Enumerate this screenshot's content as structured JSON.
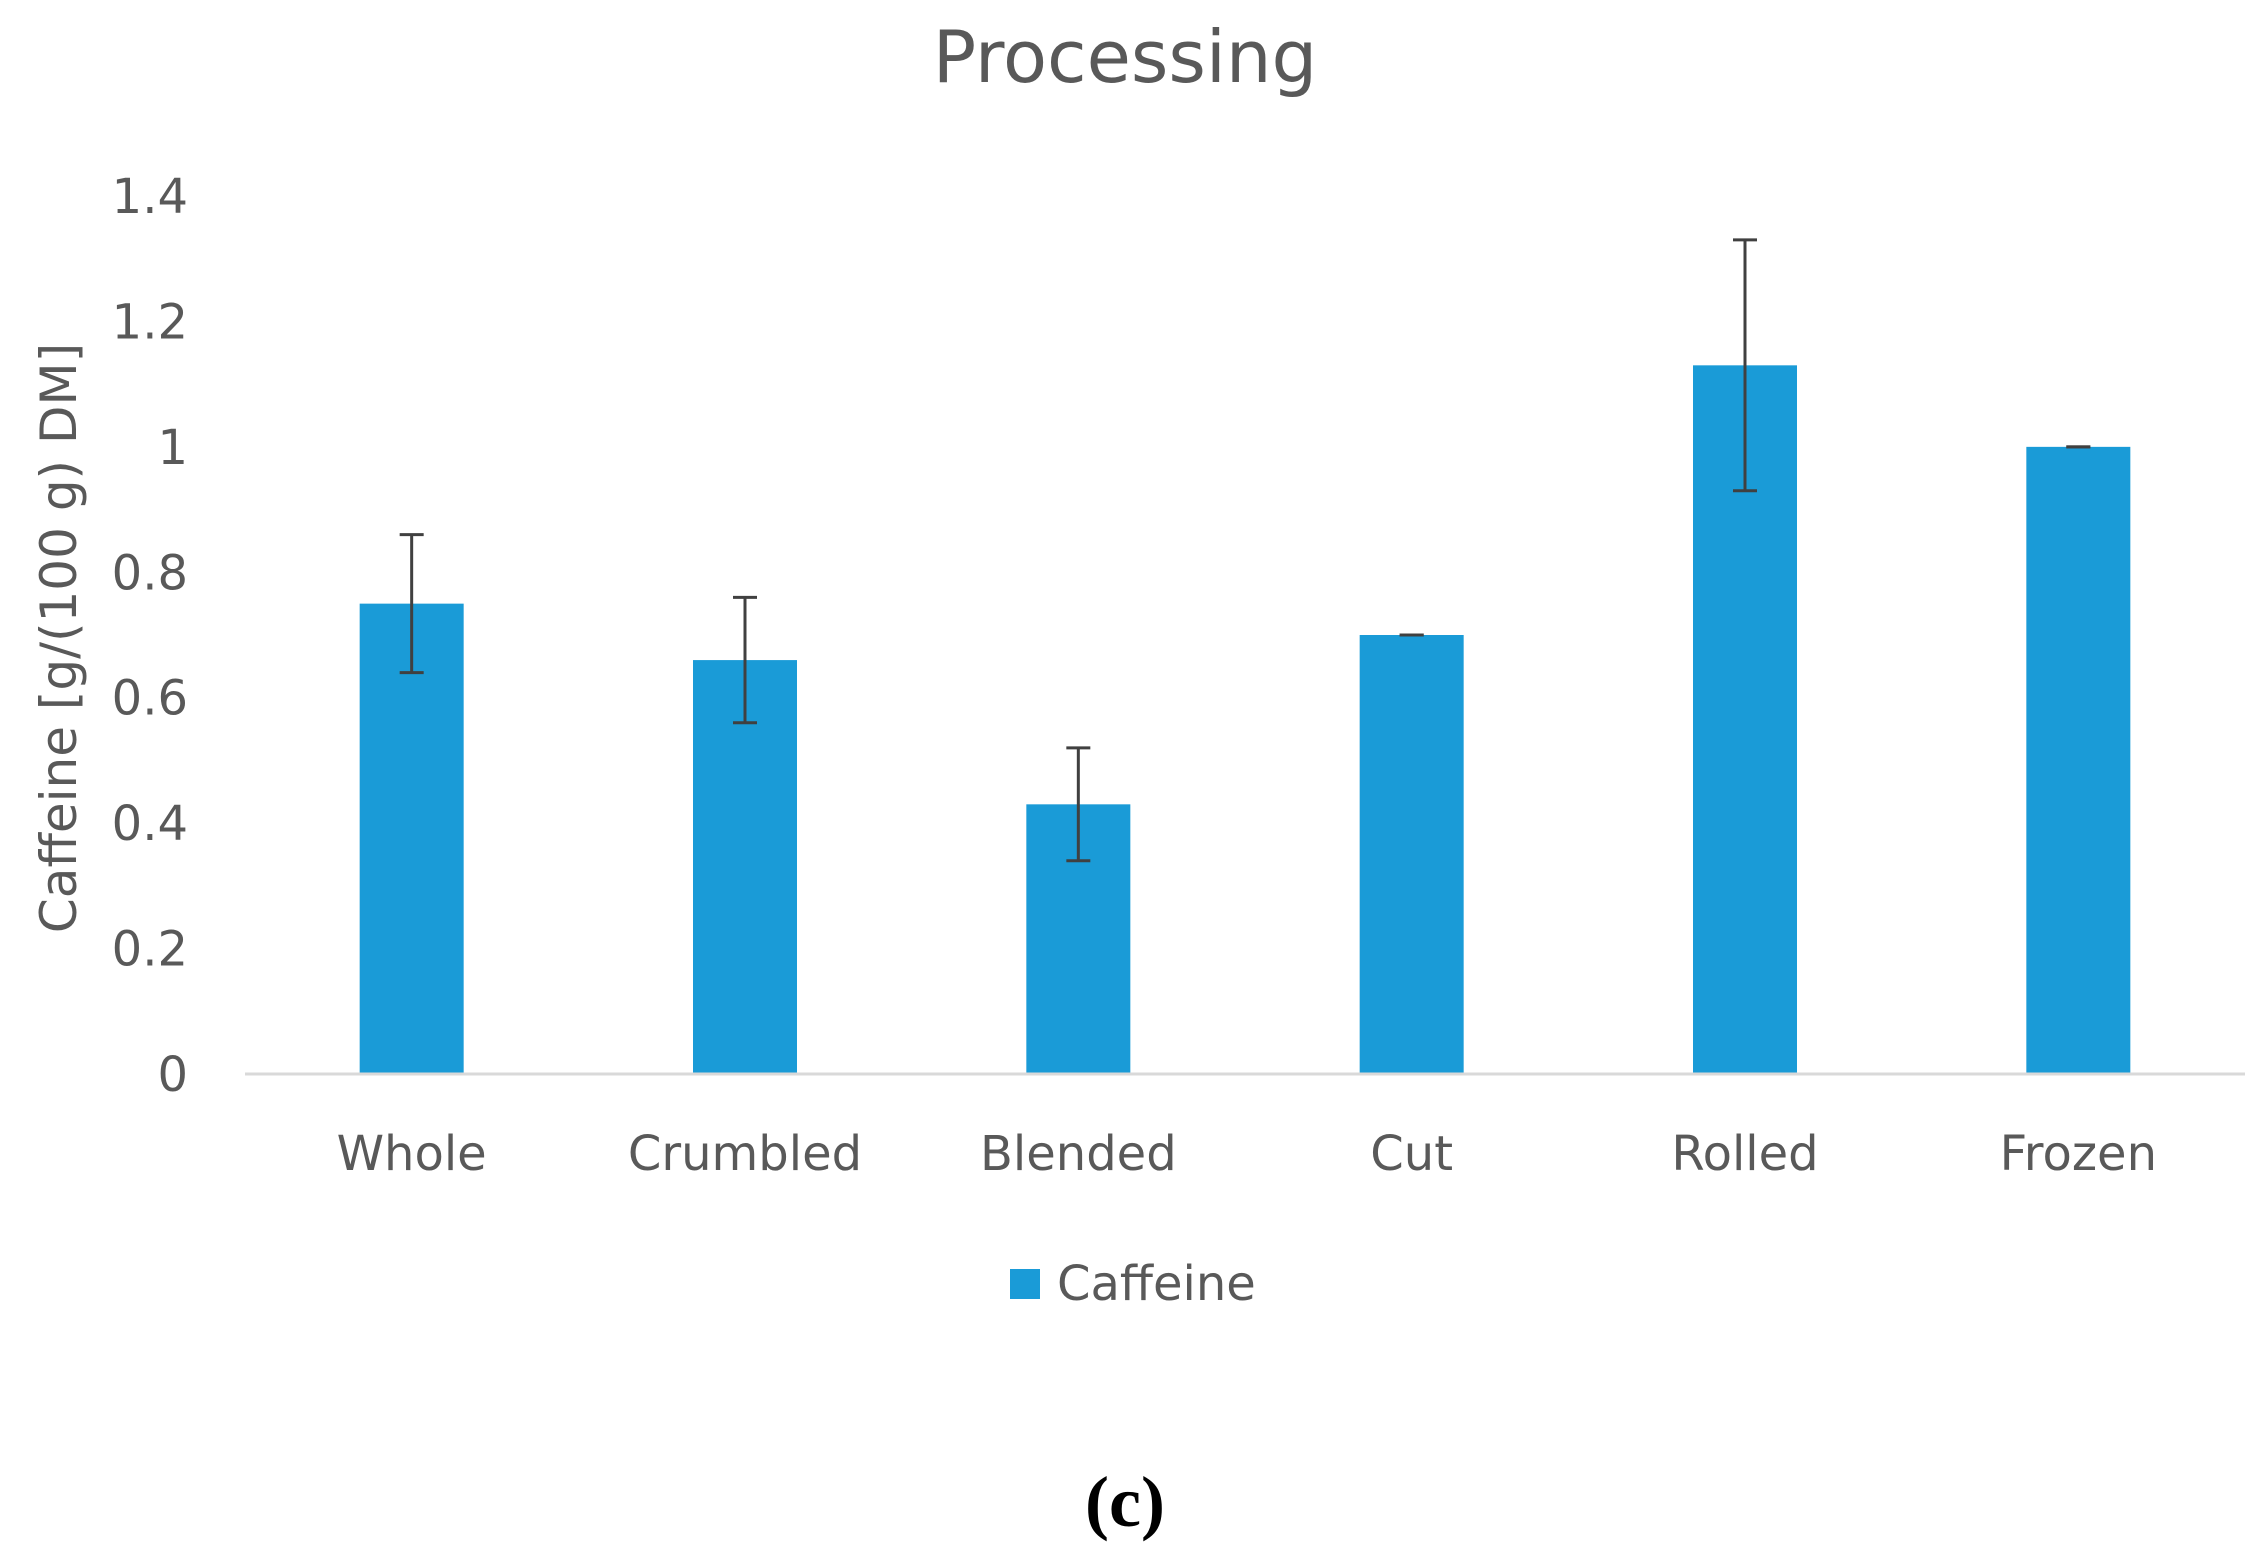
{
  "chart_data": {
    "type": "bar",
    "title": "Processing",
    "xlabel": "",
    "ylabel": "Caffeine [g/(100 g) DM]",
    "categories": [
      "Whole",
      "Crumbled",
      "Blended",
      "Cut",
      "Rolled",
      "Frozen"
    ],
    "series": [
      {
        "name": "Caffeine",
        "values": [
          0.75,
          0.66,
          0.43,
          0.7,
          1.13,
          1.0
        ],
        "error": [
          0.11,
          0.1,
          0.09,
          0.0,
          0.2,
          0.0
        ],
        "color": "#1A9BD7"
      }
    ],
    "ylim": [
      0,
      1.4
    ],
    "yticks": [
      0,
      0.2,
      0.4,
      0.6,
      0.8,
      1,
      1.2,
      1.4
    ],
    "ytick_labels": [
      "0",
      "0.2",
      "0.4",
      "0.6",
      "0.8",
      "1",
      "1.2",
      "1.4"
    ],
    "grid": false,
    "legend_position": "bottom-center",
    "panel_label": "(c)",
    "colors": {
      "text": "#595959",
      "axis": "#D9D9D9",
      "error_bar": "#404040"
    }
  }
}
